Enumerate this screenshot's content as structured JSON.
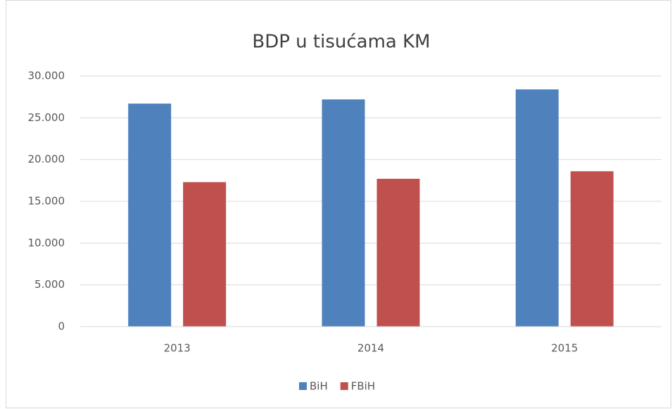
{
  "chart_data": {
    "type": "bar",
    "title": "BDP u tisućama KM",
    "categories": [
      "2013",
      "2014",
      "2015"
    ],
    "series": [
      {
        "name": "BiH",
        "color": "#4f81bd",
        "values": [
          26700,
          27200,
          28400
        ]
      },
      {
        "name": "FBiH",
        "color": "#c0504d",
        "values": [
          17300,
          17700,
          18600
        ]
      }
    ],
    "ylim": [
      0,
      30000
    ],
    "yticks": [
      0,
      {
        "value": 5000,
        "label": "5.000"
      },
      {
        "value": 10000,
        "label": "10.000"
      },
      {
        "value": 15000,
        "label": "15.000"
      },
      {
        "value": 20000,
        "label": "20.000"
      },
      {
        "value": 25000,
        "label": "25.000"
      },
      {
        "value": 30000,
        "label": "30.000"
      }
    ],
    "grid": true,
    "legend": "bottom"
  }
}
